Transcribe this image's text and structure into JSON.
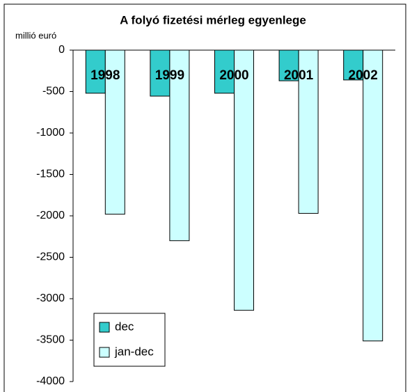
{
  "chart_data": {
    "type": "bar",
    "title": "A folyó fizetési mérleg egyenlege",
    "y_label": "millió euró",
    "categories": [
      "1998",
      "1999",
      "2000",
      "2001",
      "2002"
    ],
    "series": [
      {
        "name": "dec",
        "color": "#33cccc",
        "values": [
          -520,
          -555,
          -520,
          -370,
          -360
        ]
      },
      {
        "name": "jan-dec",
        "color": "#ccffff",
        "values": [
          -1980,
          -2300,
          -3140,
          -1970,
          -3510
        ]
      }
    ],
    "ylim": [
      -4000,
      0
    ],
    "yticks": [
      0,
      -500,
      -1000,
      -1500,
      -2000,
      -2500,
      -3000,
      -3500,
      -4000
    ],
    "legend": "lower left"
  }
}
